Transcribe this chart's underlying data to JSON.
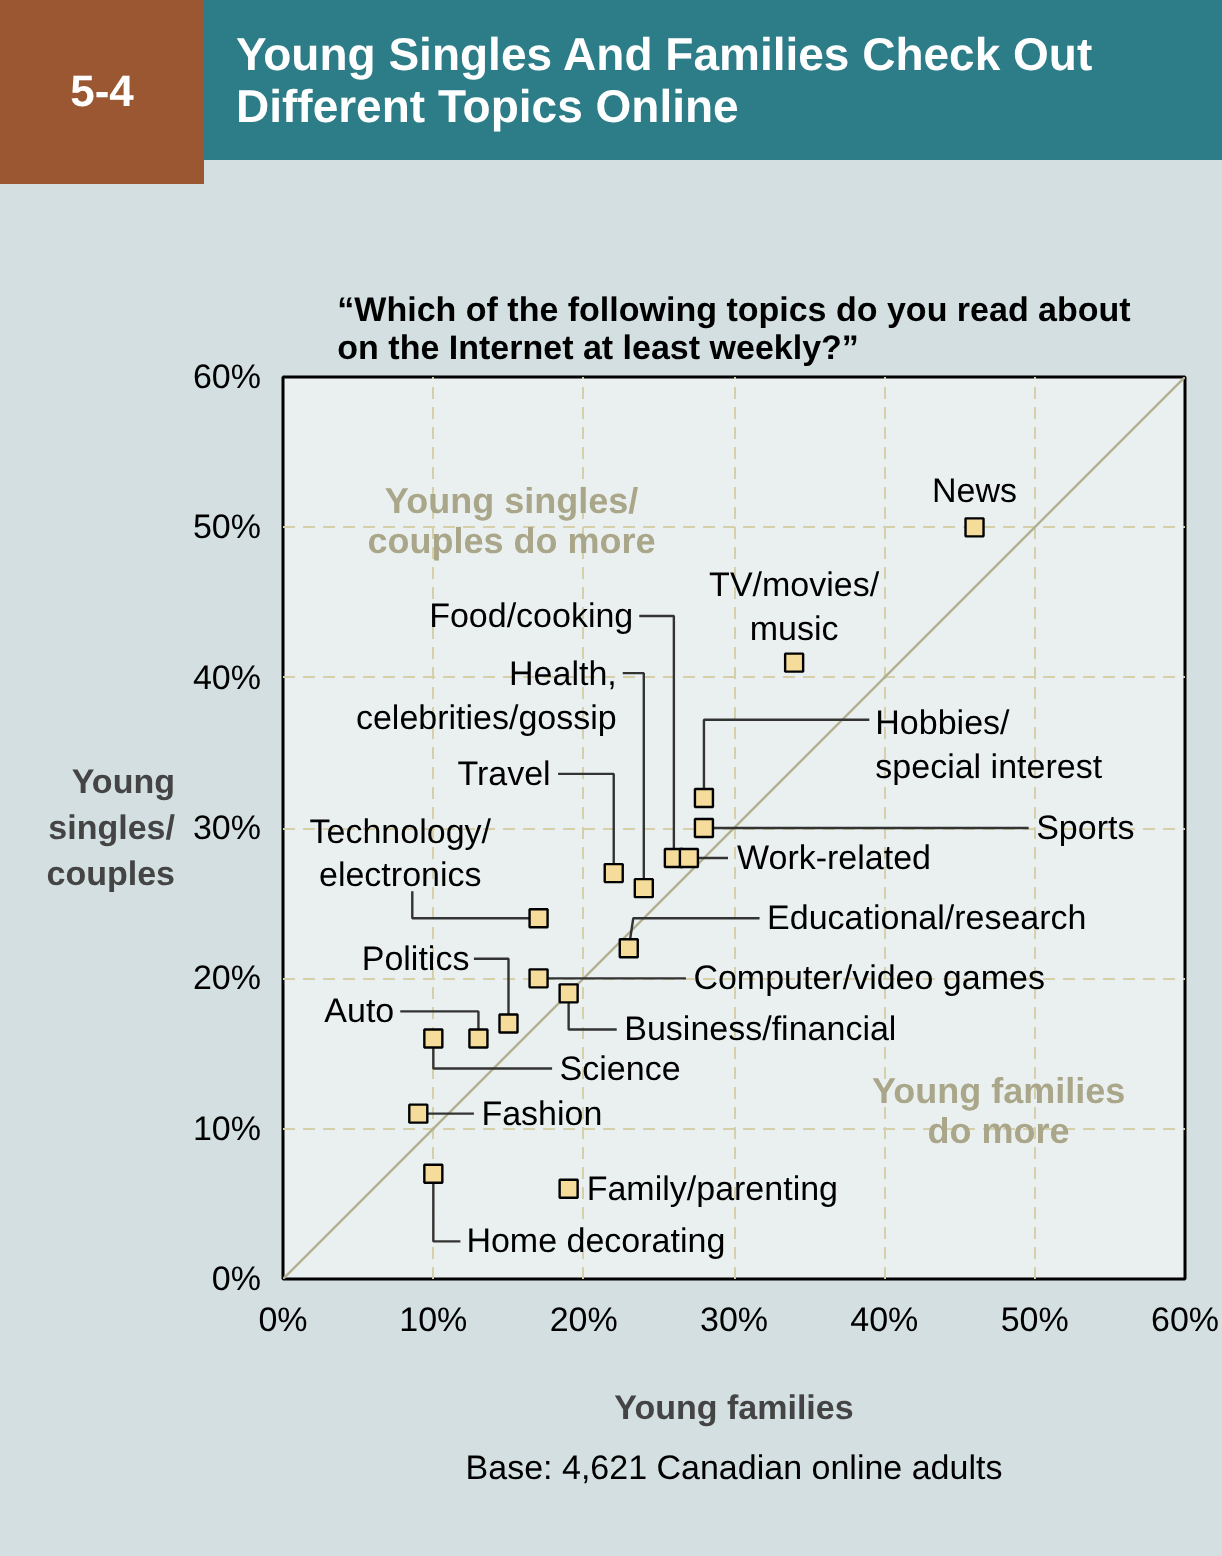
{
  "chart_data": {
    "type": "scatter",
    "title": "Young Singles And Families Check Out Different Topics Online",
    "subtitle": "“Which of the following topics do you read about\non the Internet at least weekly?”",
    "xlabel": "Young families",
    "ylabel": "Young\nsingles/\ncouples",
    "xlim": [
      0,
      60
    ],
    "ylim": [
      0,
      60
    ],
    "xticks": [
      {
        "value": 0,
        "label": "0%"
      },
      {
        "value": 10,
        "label": "10%"
      },
      {
        "value": 20,
        "label": "20%"
      },
      {
        "value": 30,
        "label": "30%"
      },
      {
        "value": 40,
        "label": "40%"
      },
      {
        "value": 50,
        "label": "50%"
      },
      {
        "value": 60,
        "label": "60%"
      }
    ],
    "yticks": [
      {
        "value": 0,
        "label": "0%"
      },
      {
        "value": 10,
        "label": "10%"
      },
      {
        "value": 20,
        "label": "20%"
      },
      {
        "value": 30,
        "label": "30%"
      },
      {
        "value": 40,
        "label": "40%"
      },
      {
        "value": 50,
        "label": "50%"
      },
      {
        "value": 60,
        "label": "60%"
      }
    ],
    "grid": true,
    "series": [
      {
        "marker": "square",
        "color": "#f5dc9a",
        "x": [
          46,
          34,
          26,
          24,
          28,
          28,
          27,
          22,
          17,
          23,
          17,
          19,
          15,
          13,
          10,
          9,
          10,
          19
        ],
        "values": [
          50,
          41,
          28,
          26,
          32,
          30,
          28,
          27,
          24,
          22,
          20,
          19,
          17,
          16,
          16,
          11,
          7,
          6
        ]
      },
      {
        "type": "line",
        "color": "#b3b091",
        "x": [
          0,
          60
        ],
        "values": [
          0,
          60
        ]
      }
    ],
    "annotations": [
      "5-4",
      "Young singles/\ncouples do more",
      "Young families\ndo more",
      "Base: 4,621 Canadian online adults",
      {
        "text": "News",
        "x": 46,
        "y": 50
      },
      {
        "text": "TV/movies/\nmusic",
        "x": 34,
        "y": 41
      },
      {
        "text": "Food/cooking",
        "x": 26,
        "y": 28
      },
      {
        "text": "Health,\ncelebrities/gossip",
        "x": 24,
        "y": 26
      },
      {
        "text": "Hobbies/\nspecial interest",
        "x": 28,
        "y": 32
      },
      {
        "text": "Sports",
        "x": 28,
        "y": 30
      },
      {
        "text": "Work-related",
        "x": 27,
        "y": 28
      },
      {
        "text": "Travel",
        "x": 22,
        "y": 27
      },
      {
        "text": "Technology/\nelectronics",
        "x": 17,
        "y": 24
      },
      {
        "text": "Educational/research",
        "x": 23,
        "y": 22
      },
      {
        "text": "Computer/video games",
        "x": 17,
        "y": 20
      },
      {
        "text": "Business/financial",
        "x": 19,
        "y": 19
      },
      {
        "text": "Politics",
        "x": 15,
        "y": 17
      },
      {
        "text": "Auto",
        "x": 13,
        "y": 16
      },
      {
        "text": "Science",
        "x": 10,
        "y": 16
      },
      {
        "text": "Fashion",
        "x": 9,
        "y": 11
      },
      {
        "text": "Home decorating",
        "x": 10,
        "y": 7
      },
      {
        "text": "Family/parenting",
        "x": 19,
        "y": 6
      }
    ]
  }
}
